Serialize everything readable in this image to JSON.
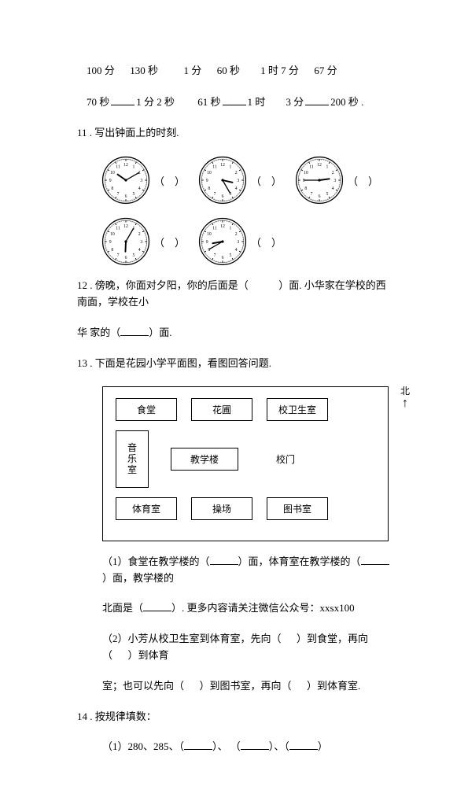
{
  "line1": {
    "p1a": "100 分",
    "p1b": "130 秒",
    "p2a": "1 分",
    "p2b": "60 秒",
    "p3a": "1 时 7 分",
    "p3b": "67 分"
  },
  "line2": {
    "p1a": "70 秒",
    "p1b": "1 分 2 秒",
    "p2a": "61 秒",
    "p2b": "1 时",
    "p3a": "3 分",
    "p3b": "200 秒 ."
  },
  "q11": "11 . 写出钟面上的时刻.",
  "clocks": [
    {
      "hour": 10,
      "minute": 10
    },
    {
      "hour": 3,
      "minute": 25
    },
    {
      "hour": 2,
      "minute": 45
    },
    {
      "hour": 6,
      "minute": 5
    },
    {
      "hour": 8,
      "minute": 40
    }
  ],
  "q12": {
    "pre": "12 . 傍晚，你面对夕阳，你的后面是（",
    "mid": "）面. 小华家在学校的西南面，学校在小",
    "line2a": "华 家的（",
    "line2b": "）面."
  },
  "q13": "13 . 下面是花园小学平面图，看图回答问题.",
  "map": {
    "r1": [
      "食堂",
      "花圃",
      "校卫生室"
    ],
    "r2_left": "音\n乐\n室",
    "r2_mid": "教学楼",
    "r2_right": "校门",
    "r3": [
      "体育室",
      "操场",
      "图书室"
    ],
    "north": "北"
  },
  "q13_1": {
    "a": "（1）食堂在教学楼的（",
    "b": "）面，体育室在教学楼的（",
    "c": "）面，教学楼的",
    "d": "北面是（",
    "e": "）. 更多内容请关注微信公众号：xxsx100"
  },
  "q13_2": {
    "a": "（2）小芳从校卫生室到体育室，先向（",
    "b": "）到食堂，再向（",
    "c": "）到体育",
    "d": "室；也可以先向（",
    "e": "）到图书室，再向（",
    "f": "）到体育室."
  },
  "q14": "14 . 按规律填数：",
  "q14_1": {
    "a": "（1）280、285、（",
    "b": "）、      （",
    "c": "）、（",
    "d": "）"
  }
}
